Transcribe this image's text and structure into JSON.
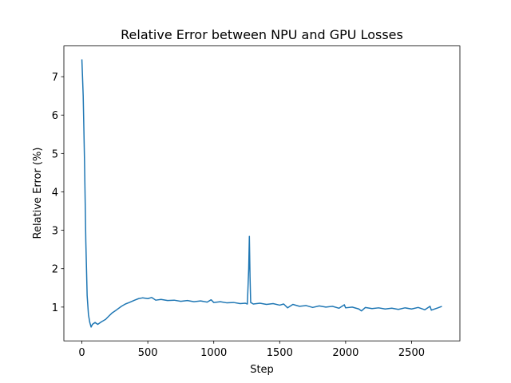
{
  "chart_data": {
    "type": "line",
    "title": "Relative Error between NPU and GPU Losses",
    "x_label": "Step",
    "y_label": "Relative Error (%)",
    "x": [
      0,
      10,
      20,
      30,
      40,
      50,
      60,
      70,
      80,
      100,
      120,
      150,
      180,
      200,
      230,
      260,
      300,
      330,
      360,
      400,
      430,
      460,
      500,
      530,
      560,
      600,
      650,
      700,
      750,
      800,
      850,
      900,
      950,
      980,
      1000,
      1050,
      1100,
      1150,
      1200,
      1240,
      1255,
      1265,
      1270,
      1275,
      1280,
      1300,
      1350,
      1400,
      1450,
      1500,
      1530,
      1560,
      1600,
      1650,
      1700,
      1750,
      1800,
      1850,
      1900,
      1950,
      1990,
      2000,
      2050,
      2100,
      2120,
      2150,
      2200,
      2250,
      2300,
      2350,
      2400,
      2450,
      2500,
      2550,
      2600,
      2640,
      2650,
      2700,
      2730
    ],
    "series": [
      {
        "name": "Relative Error",
        "color": "#1f77b4",
        "values": [
          7.45,
          6.5,
          4.8,
          2.7,
          1.3,
          0.8,
          0.6,
          0.48,
          0.55,
          0.6,
          0.55,
          0.62,
          0.68,
          0.75,
          0.85,
          0.92,
          1.02,
          1.08,
          1.12,
          1.18,
          1.22,
          1.24,
          1.22,
          1.25,
          1.18,
          1.2,
          1.17,
          1.18,
          1.15,
          1.17,
          1.14,
          1.16,
          1.13,
          1.19,
          1.12,
          1.14,
          1.11,
          1.12,
          1.09,
          1.1,
          1.08,
          2.0,
          2.84,
          1.8,
          1.12,
          1.08,
          1.1,
          1.07,
          1.09,
          1.05,
          1.08,
          0.98,
          1.07,
          1.02,
          1.04,
          0.99,
          1.03,
          1.0,
          1.02,
          0.97,
          1.06,
          0.98,
          1.0,
          0.95,
          0.9,
          0.99,
          0.96,
          0.98,
          0.95,
          0.97,
          0.94,
          0.98,
          0.95,
          0.99,
          0.93,
          1.02,
          0.92,
          0.98,
          1.02
        ]
      }
    ],
    "xlim": [
      -136.5,
      2866.5
    ],
    "ylim": [
      0.12,
      7.8
    ],
    "xticks": [
      0,
      500,
      1000,
      1500,
      2000,
      2500
    ],
    "yticks": [
      1,
      2,
      3,
      4,
      5,
      6,
      7
    ]
  }
}
